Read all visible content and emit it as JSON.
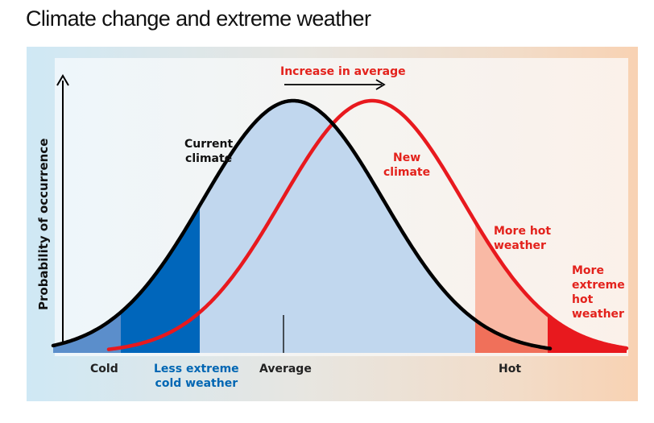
{
  "title": "Climate change and extreme weather",
  "y_axis_label": "Probability of occurrence",
  "shift_label": "Increase in average",
  "current_climate_label": "Current\nclimate",
  "new_climate_label": "New\nclimate",
  "more_hot_label": "More hot\nweather",
  "more_extreme_hot_label": "More\nextreme\nhot\nweather",
  "x_labels": {
    "cold": "Cold",
    "less_extreme_cold": "Less extreme\ncold weather",
    "average": "Average",
    "hot": "Hot"
  },
  "colors": {
    "current_curve": "#000000",
    "new_curve": "#e8191e",
    "current_fill": "#c1d7ee",
    "cold_tail": "#5b8ecb",
    "less_extreme_cold_fill": "#0066bb",
    "more_hot_fill": "#f9b9a5",
    "hot_tail": "#f0705a",
    "extreme_hot_fill": "#e8191e",
    "blue_text": "#0066b3",
    "red_text": "#e3221c"
  }
}
